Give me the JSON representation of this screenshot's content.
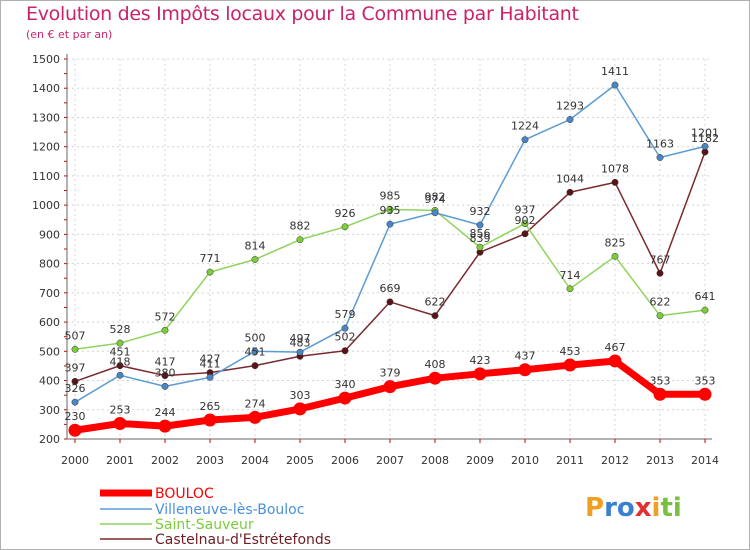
{
  "title": "Evolution des Impôts locaux pour la Commune par Habitant",
  "subtitle": "(en € et par an)",
  "logo": "Proxiti",
  "chart_data": {
    "type": "line",
    "x": [
      "2000",
      "2001",
      "2002",
      "2003",
      "2004",
      "2005",
      "2006",
      "2007",
      "2008",
      "2009",
      "2010",
      "2011",
      "2012",
      "2013",
      "2014"
    ],
    "ylim": [
      200,
      1500
    ],
    "yticks": [
      "200",
      "300",
      "400",
      "500",
      "600",
      "700",
      "800",
      "900",
      "1000",
      "1100",
      "1200",
      "1300",
      "1400",
      "1500"
    ],
    "grid": true,
    "legend": "bottom-left",
    "series": [
      {
        "name": "BOULOC",
        "color": "#ff0000",
        "line": "#ff0000",
        "marker": "#ff0000",
        "values": [
          230,
          253,
          244,
          265,
          274,
          303,
          340,
          379,
          408,
          423,
          437,
          453,
          467,
          353,
          353
        ]
      },
      {
        "name": "Villeneuve-lès-Bouloc",
        "color": "#4a90d9",
        "line": "#5b9bd5",
        "marker": "#4a86c5",
        "values": [
          326,
          418,
          380,
          411,
          500,
          497,
          579,
          935,
          974,
          932,
          1224,
          1293,
          1411,
          1163,
          1201
        ]
      },
      {
        "name": "Saint-Sauveur",
        "color": "#7ccc3c",
        "line": "#8fd45a",
        "marker": "#7ccc3c",
        "values": [
          507,
          528,
          572,
          771,
          814,
          882,
          926,
          985,
          982,
          856,
          937,
          714,
          825,
          622,
          641
        ]
      },
      {
        "name": "Castelnau-d'Estrétefonds",
        "color": "#6b1d22",
        "line": "#7a2a2f",
        "marker": "#5a1418",
        "values": [
          397,
          451,
          417,
          427,
          451,
          483,
          502,
          669,
          622,
          839,
          902,
          1044,
          1078,
          767,
          1182
        ]
      }
    ]
  }
}
